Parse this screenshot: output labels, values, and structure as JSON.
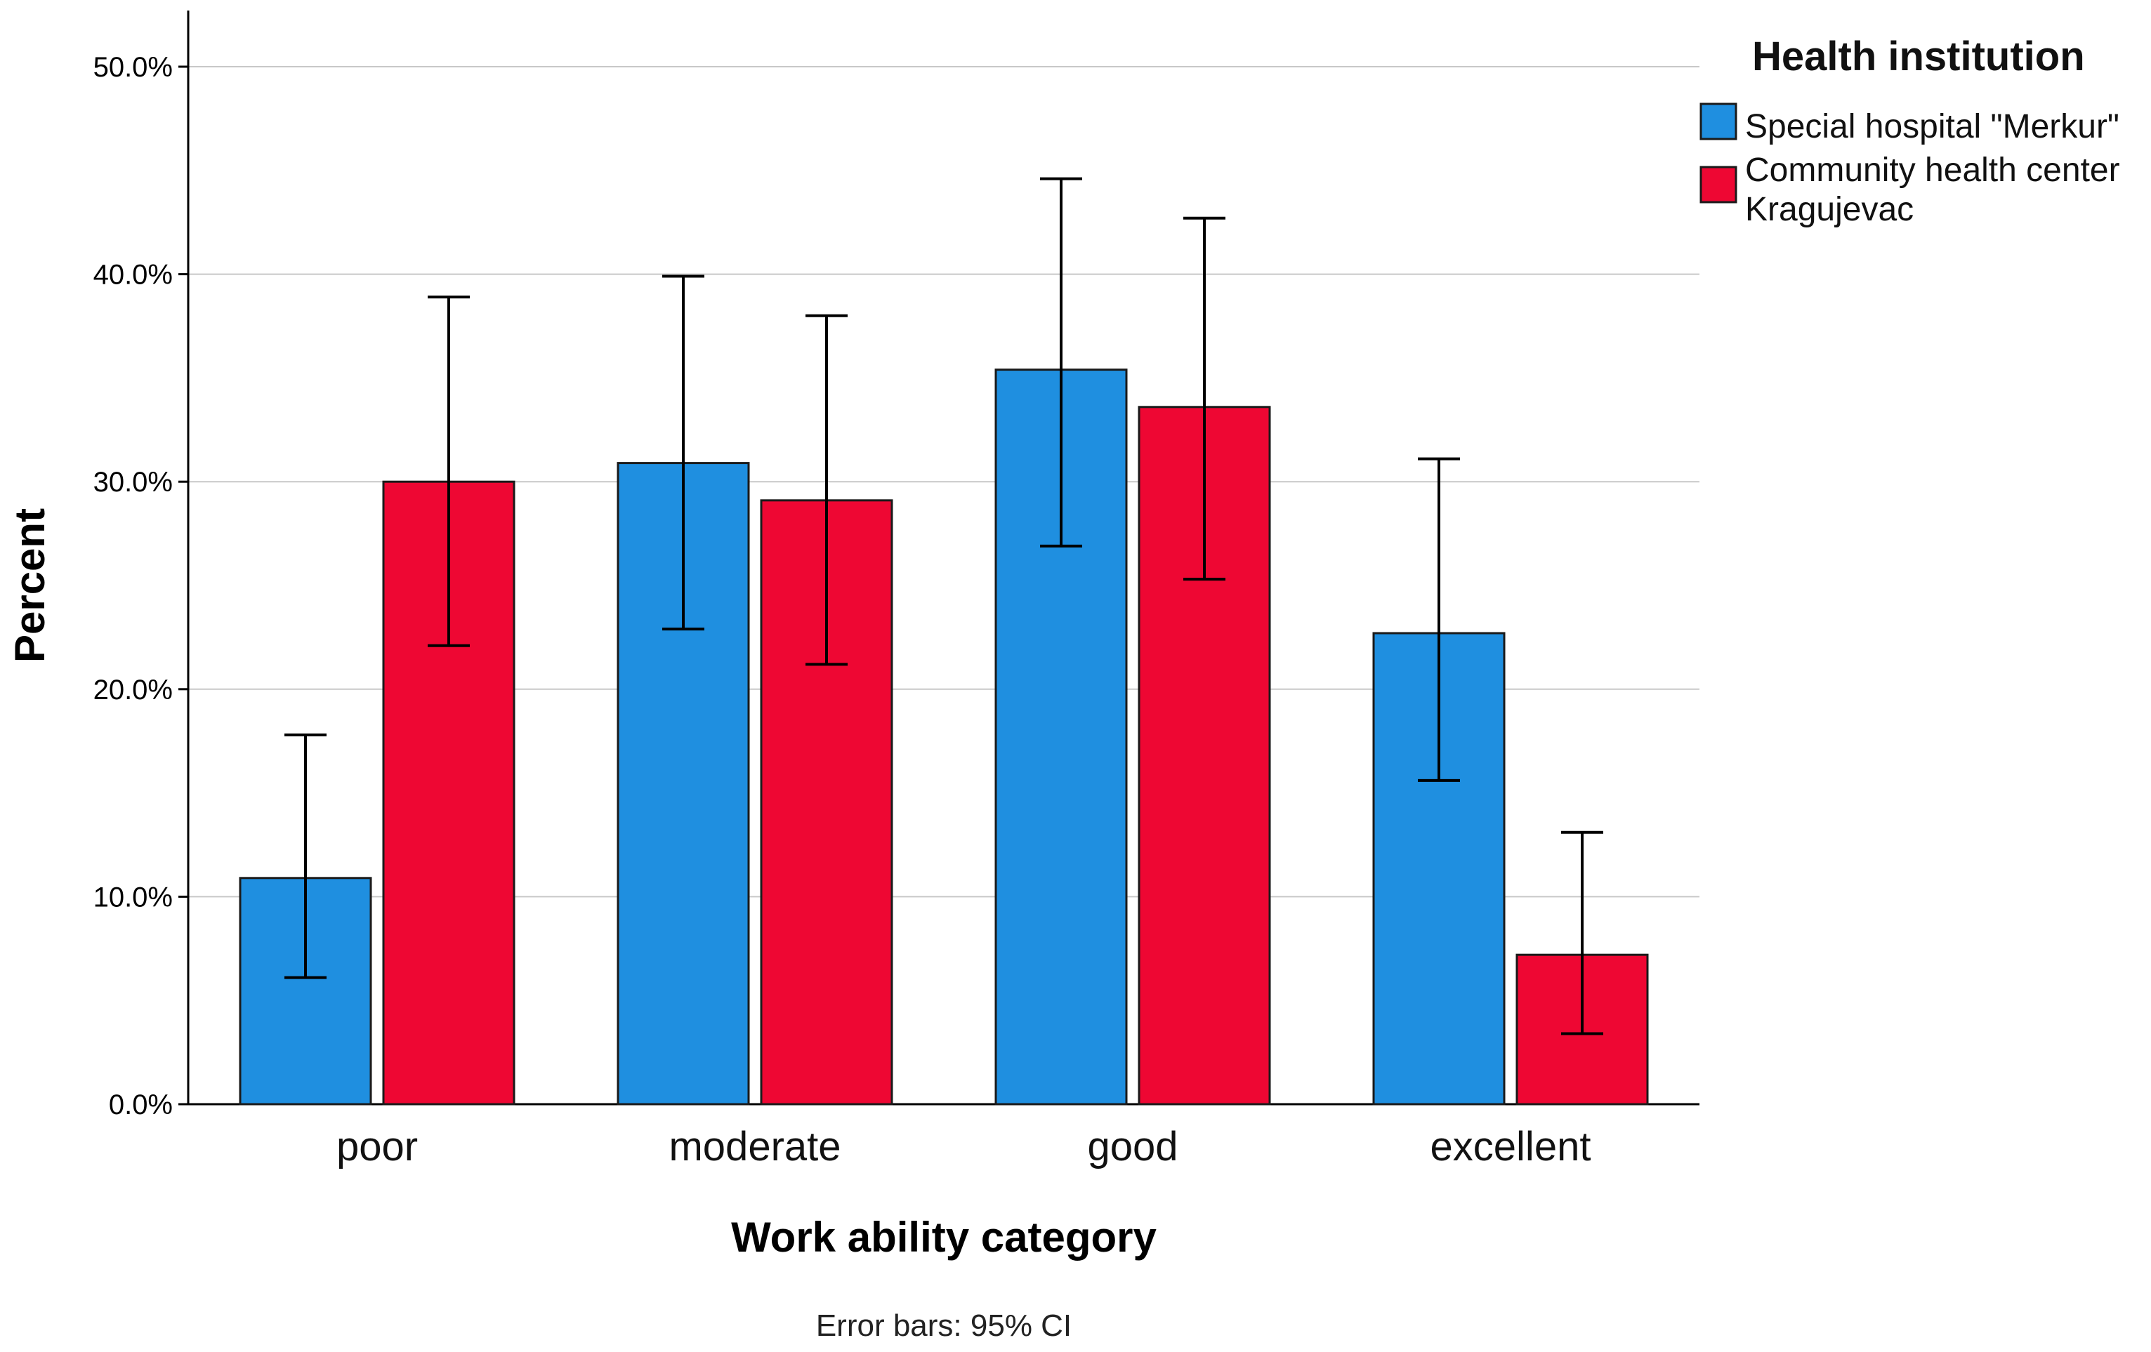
{
  "chart_data": {
    "type": "bar",
    "title": "",
    "xlabel": "Work ability category",
    "ylabel": "Percent",
    "ylim": [
      0,
      50
    ],
    "y_ticks": [
      0,
      10,
      20,
      30,
      40,
      50
    ],
    "y_tick_labels": [
      "0.0%",
      "10.0%",
      "20.0%",
      "30.0%",
      "40.0%",
      "50.0%"
    ],
    "grid": true,
    "categories": [
      "poor",
      "moderate",
      "good",
      "excellent"
    ],
    "series": [
      {
        "name": "Special hospital \"Merkur\"",
        "color": "#1f8fe0",
        "values": [
          10.9,
          30.9,
          35.4,
          22.7
        ],
        "ci_low": [
          6.1,
          22.9,
          26.9,
          15.6
        ],
        "ci_high": [
          17.8,
          39.9,
          44.6,
          31.1
        ]
      },
      {
        "name": "Community health center Kragujevac",
        "color": "#ee0733",
        "values": [
          30.0,
          29.1,
          33.6,
          7.2
        ],
        "ci_low": [
          22.1,
          21.2,
          25.3,
          3.4
        ],
        "ci_high": [
          38.9,
          38.0,
          42.7,
          13.1
        ]
      }
    ],
    "legend": {
      "title": "Health institution",
      "position": "top-right",
      "entries": [
        "Special hospital \"Merkur\"",
        "Community health center Kragujevac"
      ]
    },
    "footnote": "Error bars: 95% CI"
  }
}
